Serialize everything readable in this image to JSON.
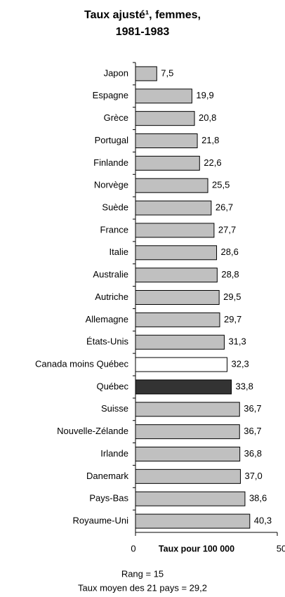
{
  "chart_data": {
    "type": "barh",
    "title": [
      "Taux ajusté¹, femmes,",
      "1981-1983"
    ],
    "categories": [
      "Japon",
      "Espagne",
      "Grèce",
      "Portugal",
      "Finlande",
      "Norvège",
      "Suède",
      "France",
      "Italie",
      "Australie",
      "Autriche",
      "Allemagne",
      "États-Unis",
      "Canada moins Québec",
      "Québec",
      "Suisse",
      "Nouvelle-Zélande",
      "Irlande",
      "Danemark",
      "Pays-Bas",
      "Royaume-Uni"
    ],
    "values": [
      7.5,
      19.9,
      20.8,
      21.8,
      22.6,
      25.5,
      26.7,
      27.7,
      28.6,
      28.8,
      29.5,
      29.7,
      31.3,
      32.3,
      33.8,
      36.7,
      36.7,
      36.8,
      37.0,
      38.6,
      40.3
    ],
    "value_labels": [
      "7,5",
      "19,9",
      "20,8",
      "21,8",
      "22,6",
      "25,5",
      "26,7",
      "27,7",
      "28,6",
      "28,8",
      "29,5",
      "29,7",
      "31,3",
      "32,3",
      "33,8",
      "36,7",
      "36,7",
      "36,8",
      "37,0",
      "38,6",
      "40,3"
    ],
    "colors": [
      "#c0c0c0",
      "#c0c0c0",
      "#c0c0c0",
      "#c0c0c0",
      "#c0c0c0",
      "#c0c0c0",
      "#c0c0c0",
      "#c0c0c0",
      "#c0c0c0",
      "#c0c0c0",
      "#c0c0c0",
      "#c0c0c0",
      "#c0c0c0",
      "#ffffff",
      "#333333",
      "#c0c0c0",
      "#c0c0c0",
      "#c0c0c0",
      "#c0c0c0",
      "#c0c0c0",
      "#c0c0c0"
    ],
    "xlim": [
      0,
      50
    ],
    "xticks": [
      0,
      50
    ],
    "xlabel": "Taux pour 100 000",
    "notes": [
      "Rang = 15",
      "Taux moyen des 21 pays = 29,2"
    ]
  }
}
